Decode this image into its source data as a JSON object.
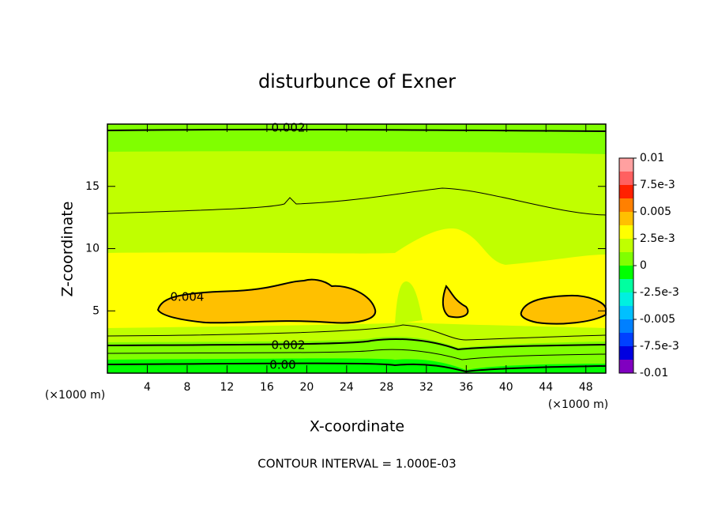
{
  "chart_data": {
    "type": "contour",
    "title": "disturbunce of Exner",
    "x_label": "X-coordinate",
    "y_label": "Z-coordinate",
    "x_unit": "(×1000 m)",
    "y_unit": "(×1000 m)",
    "footnote": "CONTOUR INTERVAL = 1.000E-03",
    "xlim": [
      0,
      50
    ],
    "xticks": [
      4,
      8,
      12,
      16,
      20,
      24,
      28,
      32,
      36,
      40,
      44,
      48
    ],
    "ylim": [
      0,
      20
    ],
    "yticks": [
      5,
      10,
      15
    ],
    "contour_labels": [
      "0.002",
      "0.004",
      "0.002",
      "0.00"
    ],
    "colorbar": {
      "levels": [
        -0.01,
        -0.00875,
        -0.0075,
        -0.00625,
        -0.005,
        -0.00375,
        -0.0025,
        -0.00125,
        0,
        0.00125,
        0.0025,
        0.00375,
        0.005,
        0.00625,
        0.0075,
        0.00875,
        0.01
      ],
      "colors": [
        "#8000c0",
        "#0000e0",
        "#0040ff",
        "#0080ff",
        "#00c0ff",
        "#00f0e0",
        "#00ffa0",
        "#00ff00",
        "#80ff00",
        "#c0ff00",
        "#ffff00",
        "#ffc000",
        "#ff8000",
        "#ff2000",
        "#ff6060",
        "#ffa0a0"
      ],
      "ticks": [
        0.01,
        {
          "value": 0.0075,
          "label": "7.5e-3"
        },
        0.005,
        {
          "value": 0.0025,
          "label": "2.5e-3"
        },
        0,
        {
          "value": -0.0025,
          "label": "-2.5e-3"
        },
        -0.005,
        {
          "value": -0.0075,
          "label": "-7.5e-3"
        },
        -0.01
      ]
    }
  }
}
